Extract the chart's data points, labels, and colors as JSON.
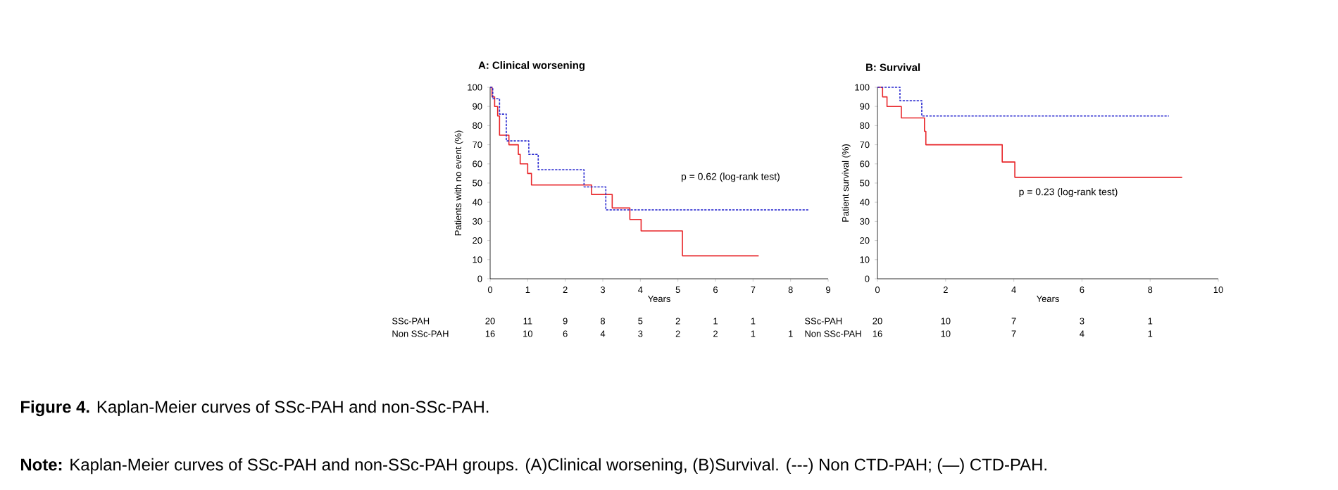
{
  "chart_data": [
    {
      "type": "step",
      "title": "A: Clinical worsening",
      "xlabel": "Years",
      "ylabel": "Patients with no event (%)",
      "xlim": [
        0,
        9
      ],
      "xticks": [
        0,
        1,
        2,
        3,
        4,
        5,
        6,
        7,
        8,
        9
      ],
      "ylim": [
        0,
        100
      ],
      "yticks": [
        0,
        10,
        20,
        30,
        40,
        50,
        60,
        70,
        80,
        90,
        100
      ],
      "series": [
        {
          "color": "#e8262a",
          "line_style": "solid",
          "x": [
            0,
            0.05,
            0.12,
            0.2,
            0.25,
            0.5,
            0.75,
            0.8,
            1.0,
            1.1,
            2.7,
            3.25,
            3.72,
            4.02,
            5.12,
            7.15
          ],
          "values": [
            100,
            95,
            90,
            85,
            75,
            70,
            65,
            60,
            55,
            49,
            44,
            37,
            31,
            25,
            12,
            12
          ]
        },
        {
          "color": "#2a2ad0",
          "line_style": "dashed",
          "x": [
            0,
            0.07,
            0.25,
            0.43,
            1.03,
            1.28,
            2.5,
            3.08,
            8.5
          ],
          "values": [
            100,
            94,
            86,
            72,
            65,
            57,
            48,
            36,
            36
          ]
        }
      ],
      "annotations": [
        "p = 0.62 (log-rank test)",
        "SSc-PAH",
        "20",
        "11",
        "9",
        "8",
        "5",
        "2",
        "1",
        "1",
        "Non SSc-PAH",
        "16",
        "10",
        "6",
        "4",
        "3",
        "2",
        "2",
        "1",
        "1"
      ]
    },
    {
      "type": "step",
      "title": "B: Survival",
      "xlabel": "Years",
      "ylabel": "Patient survival (%)",
      "xlim": [
        0,
        10
      ],
      "xticks": [
        0,
        2,
        4,
        6,
        8,
        10
      ],
      "ylim": [
        0,
        100
      ],
      "yticks": [
        0,
        10,
        20,
        30,
        40,
        50,
        60,
        70,
        80,
        90,
        100
      ],
      "series": [
        {
          "color": "#e8262a",
          "line_style": "solid",
          "x": [
            0,
            0.15,
            0.28,
            0.7,
            1.38,
            1.42,
            3.66,
            4.03,
            8.94
          ],
          "values": [
            100,
            95,
            90,
            84,
            77,
            70,
            61,
            53,
            53
          ]
        },
        {
          "color": "#2a2ad0",
          "line_style": "dashed",
          "x": [
            0,
            0.66,
            1.3,
            8.55
          ],
          "values": [
            100,
            93,
            85,
            85
          ]
        }
      ],
      "annotations": [
        "p = 0.23 (log-rank test)",
        "SSc-PAH",
        "20",
        "10",
        "7",
        "3",
        "1",
        "Non SSc-PAH",
        "16",
        "10",
        "7",
        "4",
        "1"
      ]
    },
    {
      "type": "other",
      "title": "**Figure 4.** Kaplan-Meier curves of SSc-PAH and non-SSc-PAH.",
      "annotations": [
        "**Note:** Kaplan-Meier curves of SSc-PAH and non-SSc-PAH groups. (A)Clinical worsening, (B)Survival. (---) Non CTD-PAH; (—) CTD-PAH."
      ]
    }
  ]
}
